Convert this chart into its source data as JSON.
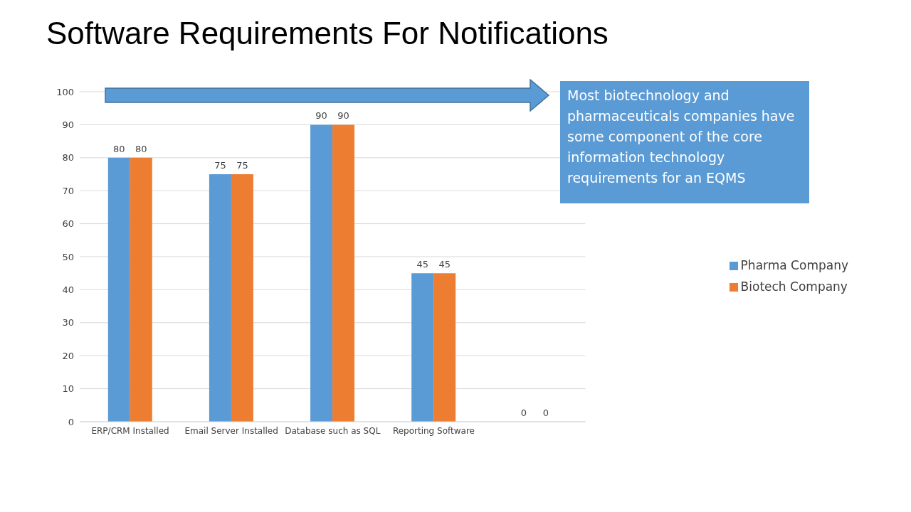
{
  "chart_data": {
    "type": "bar",
    "title": "Software Requirements For Notifications",
    "categories": [
      "ERP/CRM Installed",
      "Email Server Installed",
      "Database such as SQL",
      "Reporting Software",
      null
    ],
    "series": [
      {
        "name": "Pharma Company",
        "color": "#5b9bd5",
        "values": [
          80,
          75,
          90,
          45,
          0
        ]
      },
      {
        "name": "Biotech Company",
        "color": "#ed7d31",
        "values": [
          80,
          75,
          90,
          45,
          0
        ]
      }
    ],
    "ylim": [
      0,
      100
    ],
    "yticks": [
      0,
      10,
      20,
      30,
      40,
      50,
      60,
      70,
      80,
      90,
      100
    ],
    "grid": "y",
    "legend": "right",
    "data_labels": true,
    "annotations": [
      "Most biotechnology and pharmaceuticals companies have some component of the core information technology requirements for an EQMS"
    ]
  }
}
